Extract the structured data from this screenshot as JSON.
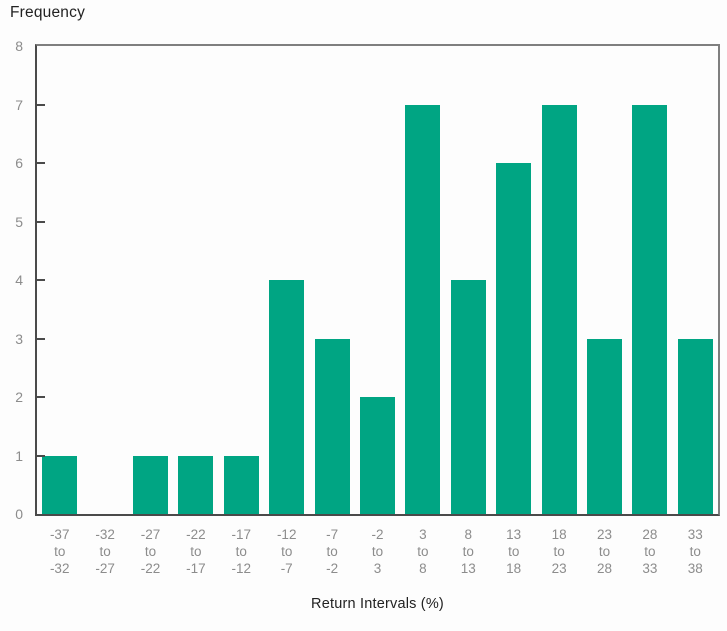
{
  "chart_data": {
    "type": "bar",
    "title": "",
    "y_axis_title": "Frequency",
    "x_axis_title": "Return Intervals (%)",
    "categories": [
      "-37 to -32",
      "-32 to -27",
      "-27 to -22",
      "-22 to -17",
      "-17 to -12",
      "-12 to -7",
      "-7 to -2",
      "-2 to 3",
      "3 to 8",
      "8 to 13",
      "13 to 18",
      "18 to 23",
      "23 to 28",
      "28 to 33",
      "33 to 38"
    ],
    "values": [
      1,
      0,
      1,
      1,
      1,
      4,
      3,
      2,
      7,
      4,
      6,
      7,
      3,
      7,
      3
    ],
    "ylim": [
      0,
      8
    ],
    "yticks": [
      0,
      1,
      2,
      3,
      4,
      5,
      6,
      7,
      8
    ],
    "grid": false,
    "legend": null,
    "colors": {
      "bar": "#00A583",
      "axis": "#4a4a4a",
      "frame": "#7f7f7f",
      "tick_label": "#8c8c8c",
      "title_text": "#222222",
      "background": "#fdfdfd"
    }
  }
}
